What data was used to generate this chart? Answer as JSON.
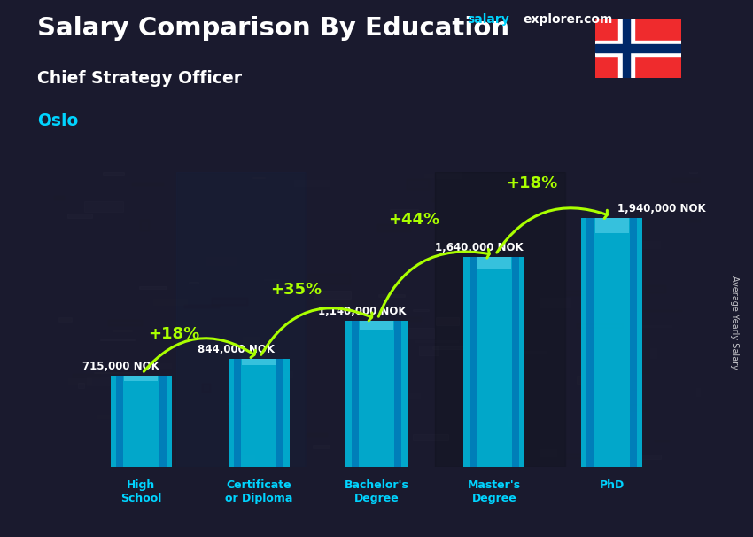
{
  "title_salary": "Salary Comparison By Education",
  "subtitle_role": "Chief Strategy Officer",
  "subtitle_city": "Oslo",
  "watermark_salary": "salary",
  "watermark_rest": "explorer.com",
  "ylabel": "Average Yearly Salary",
  "categories": [
    "High\nSchool",
    "Certificate\nor Diploma",
    "Bachelor's\nDegree",
    "Master's\nDegree",
    "PhD"
  ],
  "values": [
    715000,
    844000,
    1140000,
    1640000,
    1940000
  ],
  "value_labels": [
    "715,000 NOK",
    "844,000 NOK",
    "1,140,000 NOK",
    "1,640,000 NOK",
    "1,940,000 NOK"
  ],
  "pct_labels": [
    "+18%",
    "+35%",
    "+44%",
    "+18%"
  ],
  "bar_color_main": "#00b4d8",
  "bar_color_light": "#48cae4",
  "bar_color_dark": "#0077b6",
  "title_color": "#ffffff",
  "role_color": "#ffffff",
  "city_color": "#00d4ff",
  "value_label_color": "#ffffff",
  "pct_color": "#aaff00",
  "arrow_color": "#aaff00",
  "xlabel_color": "#00d4ff",
  "bg_color": "#1a1a2e",
  "watermark_color1": "#00d4ff",
  "watermark_color2": "#ffffff",
  "ylim": [
    0,
    2300000
  ],
  "figsize": [
    8.5,
    6.06
  ],
  "dpi": 100
}
